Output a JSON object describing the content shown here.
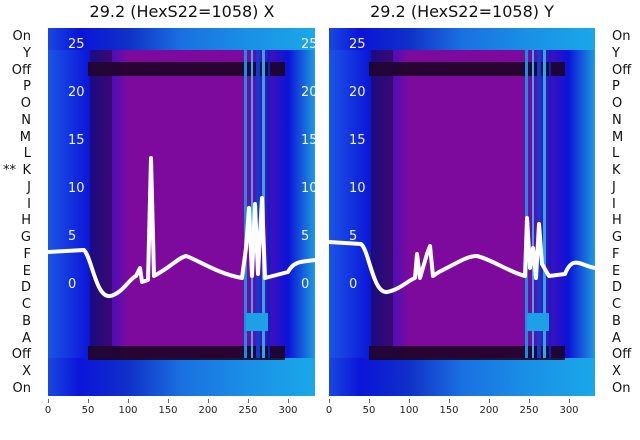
{
  "panels": [
    {
      "title": "29.2 (HexS22=1058) X"
    },
    {
      "title": "29.2 (HexS22=1058) Y"
    }
  ],
  "row_labels": [
    "On",
    "Y",
    "Off",
    "P",
    "O",
    "N",
    "M",
    "L",
    "K",
    "J",
    "I",
    "H",
    "G",
    "F",
    "E",
    "D",
    "C",
    "B",
    "A",
    "Off",
    "X",
    "On"
  ],
  "marker": {
    "text": "**",
    "row": "K"
  },
  "y_ticks": [
    "25",
    "20",
    "15",
    "10",
    "5",
    "0"
  ],
  "x_ticks": [
    "0",
    "50",
    "100",
    "150",
    "200",
    "250",
    "300"
  ],
  "clipped_tick_labels": [
    "25",
    "20",
    "15",
    "10",
    "5",
    "0"
  ],
  "colors": {
    "deep_blue": "#0b14d8",
    "mid_blue": "#1a55e6",
    "light_blue": "#1e9be0",
    "purple": "#7d0a9c",
    "dark": "#1a0420",
    "trace": "#ffffff"
  }
}
